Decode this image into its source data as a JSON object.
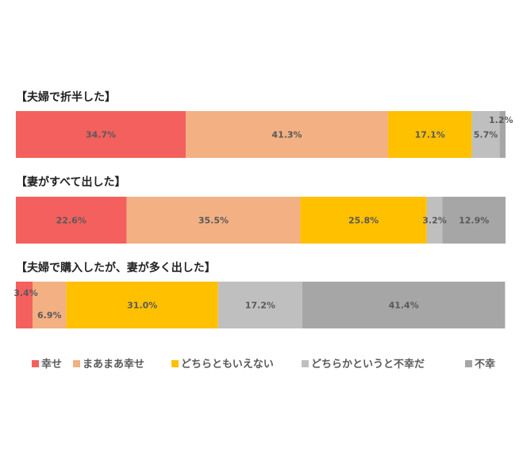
{
  "chart_data": {
    "type": "bar",
    "orientation": "horizontal",
    "stacked": "100%",
    "categories": [
      "【夫婦で折半した】",
      "【妻がすべて出した】",
      "【夫婦で購入したが、妻が多く出した】"
    ],
    "series": [
      {
        "name": "幸せ",
        "color": "#f4605d",
        "values": [
          34.7,
          22.6,
          3.4
        ],
        "labels": [
          "34.7%",
          "22.6%",
          "3.4%"
        ]
      },
      {
        "name": "まあまあ幸せ",
        "color": "#f3b083",
        "values": [
          41.3,
          35.5,
          6.9
        ],
        "labels": [
          "41.3%",
          "35.5%",
          "6.9%"
        ]
      },
      {
        "name": "どちらともいえない",
        "color": "#ffc000",
        "values": [
          17.1,
          25.8,
          31.0
        ],
        "labels": [
          "17.1%",
          "25.8%",
          "31.0%"
        ]
      },
      {
        "name": "どちらかというと不幸だ",
        "color": "#bfbfbf",
        "values": [
          5.7,
          3.2,
          17.2
        ],
        "labels": [
          "5.7%",
          "3.2%",
          "17.2%"
        ]
      },
      {
        "name": "不幸",
        "color": "#a6a6a6",
        "values": [
          1.2,
          12.9,
          41.4
        ],
        "labels": [
          "1.2%",
          "12.9%",
          "41.4%"
        ]
      }
    ],
    "legend_position": "bottom",
    "grid": false
  }
}
